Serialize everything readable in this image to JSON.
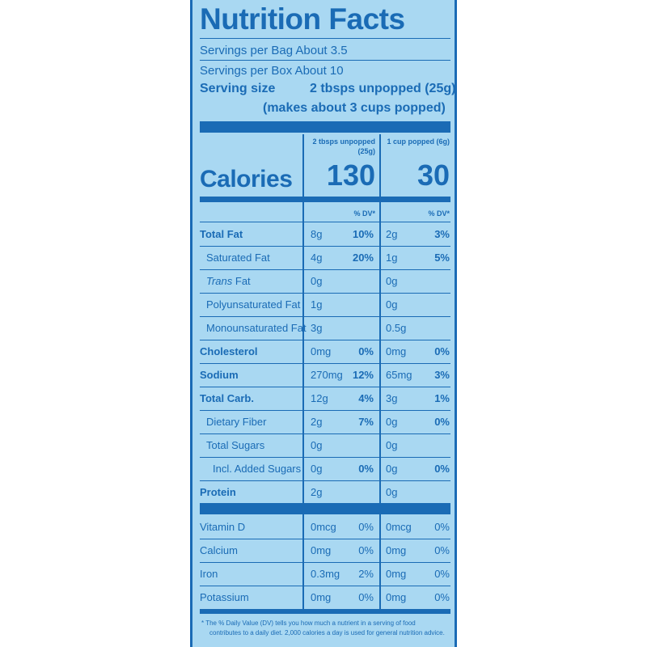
{
  "title": "Nutrition Facts",
  "servings_bag": "Servings per Bag About 3.5",
  "servings_box": "Servings per Box About 10",
  "serving_size_label": "Serving size",
  "serving_size_value": "2 tbsps unpopped (25g)",
  "serving_size_value2": "(makes about 3 cups popped)",
  "col1_head": "2 tbsps unpopped",
  "col1_head2": "(25g)",
  "col2_head": "1 cup popped (6g)",
  "calories_label": "Calories",
  "calories_col1": "130",
  "calories_col2": "30",
  "dv_head": "% DV*",
  "rows": [
    {
      "name": "Total Fat",
      "a1": "8g",
      "p1": "10%",
      "a2": "2g",
      "p2": "3%"
    },
    {
      "name": "Saturated Fat",
      "a1": "4g",
      "p1": "20%",
      "a2": "1g",
      "p2": "5%"
    },
    {
      "name_italic": "Trans",
      "name_rest": " Fat",
      "a1": "0g",
      "p1": "",
      "a2": "0g",
      "p2": ""
    },
    {
      "name": "Polyunsaturated Fat",
      "a1": "1g",
      "p1": "",
      "a2": "0g",
      "p2": ""
    },
    {
      "name": "Monounsaturated Fat",
      "a1": "3g",
      "p1": "",
      "a2": "0.5g",
      "p2": ""
    },
    {
      "name": "Cholesterol",
      "a1": "0mg",
      "p1": "0%",
      "a2": "0mg",
      "p2": "0%"
    },
    {
      "name": "Sodium",
      "a1": "270mg",
      "p1": "12%",
      "a2": "65mg",
      "p2": "3%"
    },
    {
      "name": "Total Carb.",
      "a1": "12g",
      "p1": "4%",
      "a2": "3g",
      "p2": "1%"
    },
    {
      "name": "Dietary Fiber",
      "a1": "2g",
      "p1": "7%",
      "a2": "0g",
      "p2": "0%"
    },
    {
      "name": "Total Sugars",
      "a1": "0g",
      "p1": "",
      "a2": "0g",
      "p2": ""
    },
    {
      "name": "Incl. Added Sugars",
      "a1": "0g",
      "p1": "0%",
      "a2": "0g",
      "p2": "0%"
    },
    {
      "name": "Protein",
      "a1": "2g",
      "p1": "",
      "a2": "0g",
      "p2": ""
    }
  ],
  "vitamins": [
    {
      "name": "Vitamin D",
      "a1": "0mcg",
      "p1": "0%",
      "a2": "0mcg",
      "p2": "0%"
    },
    {
      "name": "Calcium",
      "a1": "0mg",
      "p1": "0%",
      "a2": "0mg",
      "p2": "0%"
    },
    {
      "name": "Iron",
      "a1": "0.3mg",
      "p1": "2%",
      "a2": "0mg",
      "p2": "0%"
    },
    {
      "name": "Potassium",
      "a1": "0mg",
      "p1": "0%",
      "a2": "0mg",
      "p2": "0%"
    }
  ],
  "footnote_line1": "* The % Daily Value (DV) tells you how much a nutrient in a serving of food",
  "footnote_line2": "contributes to a daily diet. 2,000 calories a day is used for general nutrition advice.",
  "colors": {
    "background": "#a9d8f2",
    "ink": "#1a6bb5"
  }
}
